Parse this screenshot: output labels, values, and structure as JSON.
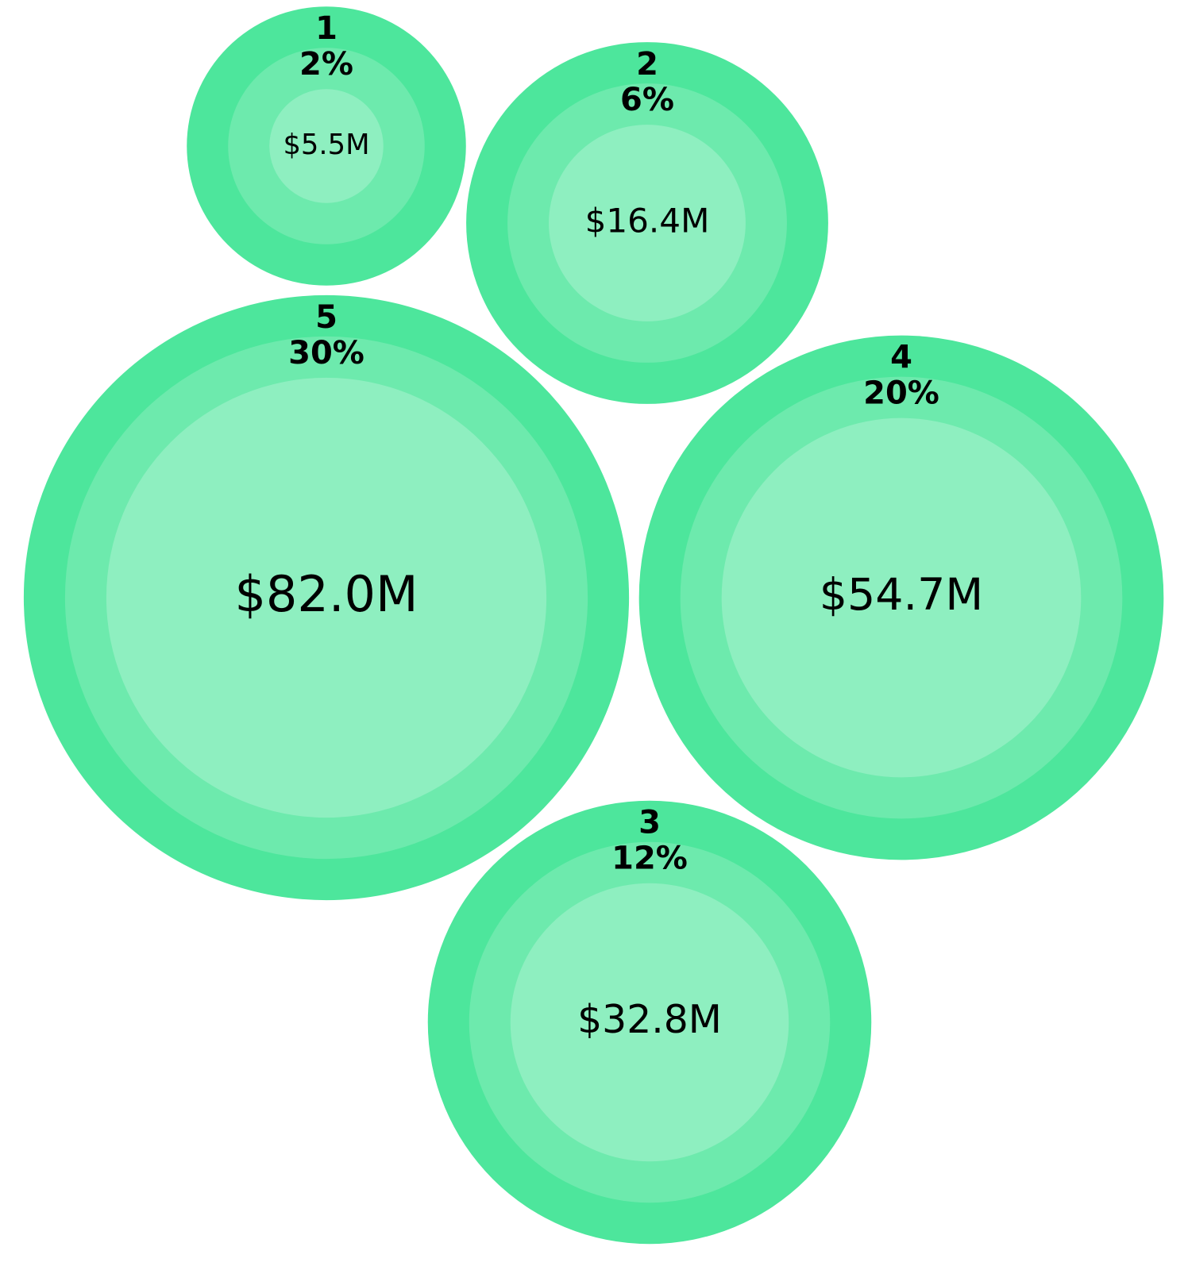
{
  "chart_data": {
    "type": "bubble",
    "categories": [
      "1",
      "2",
      "3",
      "4",
      "5"
    ],
    "values": [
      5500000,
      16400000,
      32800000,
      54700000,
      82000000
    ],
    "value_labels": [
      "$5.5M",
      "$16.4M",
      "$32.8M",
      "$54.7M",
      "$82.0M"
    ],
    "shares": [
      2,
      6,
      12,
      20,
      30
    ],
    "share_labels": [
      "2%",
      "6%",
      "12%",
      "20%",
      "30%"
    ],
    "colors": [
      "#4de69c",
      "#6deaad",
      "#8eefc0"
    ]
  }
}
